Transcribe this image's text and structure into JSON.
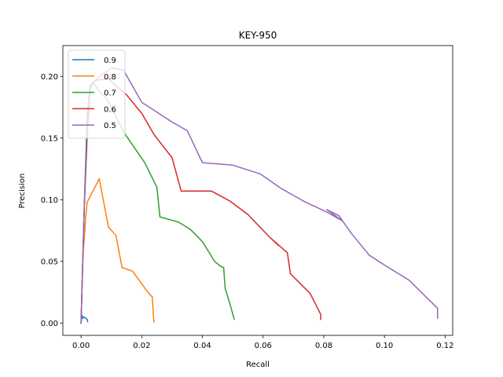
{
  "chart_data": {
    "type": "line",
    "title": "KEY-950",
    "xlabel": "Recall",
    "ylabel": "Precision",
    "xlim": [
      -0.006,
      0.1225
    ],
    "ylim": [
      -0.01,
      0.225
    ],
    "xticks": [
      "0.00",
      "0.02",
      "0.04",
      "0.06",
      "0.08",
      "0.10",
      "0.12"
    ],
    "xtick_values": [
      0.0,
      0.02,
      0.04,
      0.06,
      0.08,
      0.1,
      0.12
    ],
    "yticks": [
      "0.00",
      "0.05",
      "0.10",
      "0.15",
      "0.20"
    ],
    "ytick_values": [
      0.0,
      0.05,
      0.1,
      0.15,
      0.2
    ],
    "grid": false,
    "legend_position": "top-left",
    "series": [
      {
        "name": "0.9",
        "color": "#1f77b4",
        "points": [
          [
            0.0,
            0.0
          ],
          [
            0.0003,
            0.006
          ],
          [
            0.0006,
            0.004
          ],
          [
            0.001,
            0.005
          ],
          [
            0.0015,
            0.004
          ],
          [
            0.002,
            0.003
          ],
          [
            0.0022,
            0.001
          ]
        ]
      },
      {
        "name": "0.8",
        "color": "#ff7f0e",
        "points": [
          [
            0.0,
            0.0
          ],
          [
            0.0005,
            0.05
          ],
          [
            0.0015,
            0.085
          ],
          [
            0.002,
            0.098
          ],
          [
            0.006,
            0.117
          ],
          [
            0.009,
            0.078
          ],
          [
            0.0115,
            0.071
          ],
          [
            0.0135,
            0.045
          ],
          [
            0.017,
            0.042
          ],
          [
            0.022,
            0.025
          ],
          [
            0.0235,
            0.021
          ],
          [
            0.0235,
            0.019
          ],
          [
            0.024,
            0.001
          ]
        ]
      },
      {
        "name": "0.7",
        "color": "#2ca02c",
        "points": [
          [
            0.0,
            0.0
          ],
          [
            0.001,
            0.09
          ],
          [
            0.002,
            0.15
          ],
          [
            0.003,
            0.19
          ],
          [
            0.004,
            0.195
          ],
          [
            0.006,
            0.188
          ],
          [
            0.009,
            0.18
          ],
          [
            0.014,
            0.155
          ],
          [
            0.021,
            0.13
          ],
          [
            0.025,
            0.11
          ],
          [
            0.026,
            0.086
          ],
          [
            0.032,
            0.082
          ],
          [
            0.036,
            0.076
          ],
          [
            0.04,
            0.066
          ],
          [
            0.044,
            0.05
          ],
          [
            0.046,
            0.046
          ],
          [
            0.047,
            0.045
          ],
          [
            0.0475,
            0.028
          ],
          [
            0.049,
            0.016
          ],
          [
            0.0505,
            0.003
          ]
        ]
      },
      {
        "name": "0.6",
        "color": "#d62728",
        "points": [
          [
            0.0,
            0.0
          ],
          [
            0.001,
            0.09
          ],
          [
            0.002,
            0.16
          ],
          [
            0.003,
            0.193
          ],
          [
            0.005,
            0.197
          ],
          [
            0.009,
            0.198
          ],
          [
            0.015,
            0.185
          ],
          [
            0.02,
            0.17
          ],
          [
            0.024,
            0.153
          ],
          [
            0.03,
            0.134
          ],
          [
            0.033,
            0.107
          ],
          [
            0.043,
            0.107
          ],
          [
            0.049,
            0.099
          ],
          [
            0.055,
            0.088
          ],
          [
            0.062,
            0.07
          ],
          [
            0.065,
            0.063
          ],
          [
            0.062,
            0.07
          ],
          [
            0.068,
            0.057
          ],
          [
            0.069,
            0.04
          ],
          [
            0.0755,
            0.024
          ],
          [
            0.079,
            0.007
          ],
          [
            0.079,
            0.003
          ]
        ]
      },
      {
        "name": "0.5",
        "color": "#9467bd",
        "points": [
          [
            0.0,
            0.0
          ],
          [
            0.001,
            0.09
          ],
          [
            0.002,
            0.17
          ],
          [
            0.003,
            0.193
          ],
          [
            0.006,
            0.2
          ],
          [
            0.01,
            0.207
          ],
          [
            0.014,
            0.205
          ],
          [
            0.02,
            0.179
          ],
          [
            0.025,
            0.171
          ],
          [
            0.03,
            0.163
          ],
          [
            0.035,
            0.156
          ],
          [
            0.04,
            0.13
          ],
          [
            0.05,
            0.128
          ],
          [
            0.059,
            0.121
          ],
          [
            0.066,
            0.109
          ],
          [
            0.074,
            0.098
          ],
          [
            0.081,
            0.09
          ],
          [
            0.086,
            0.083
          ],
          [
            0.081,
            0.092
          ],
          [
            0.085,
            0.087
          ],
          [
            0.089,
            0.073
          ],
          [
            0.095,
            0.055
          ],
          [
            0.1,
            0.047
          ],
          [
            0.108,
            0.035
          ],
          [
            0.1175,
            0.012
          ],
          [
            0.1175,
            0.004
          ]
        ]
      }
    ]
  }
}
